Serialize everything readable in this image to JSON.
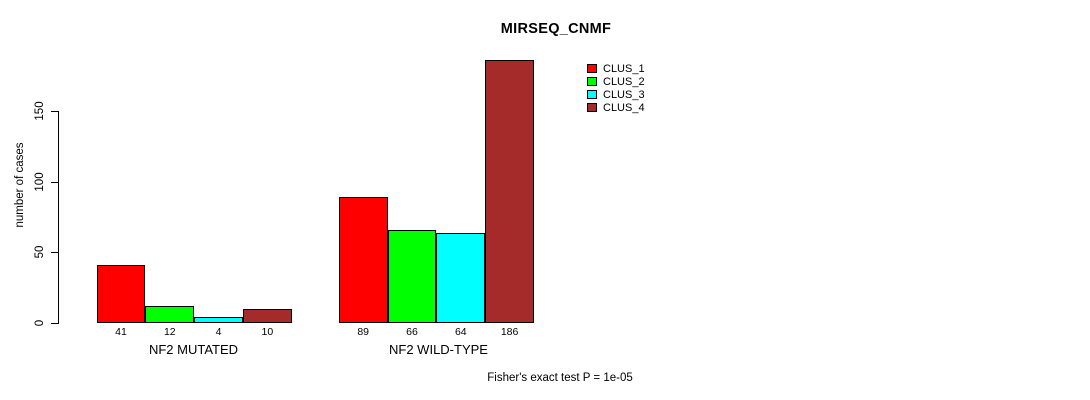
{
  "chart_data": {
    "type": "bar",
    "title": "MIRSEQ_CNMF",
    "xlabel": "",
    "ylabel": "number of cases",
    "categories": [
      "NF2 MUTATED",
      "NF2 WILD-TYPE"
    ],
    "series": [
      {
        "name": "CLUS_1",
        "color": "#FF0000",
        "values": [
          41,
          89
        ]
      },
      {
        "name": "CLUS_2",
        "color": "#00FF00",
        "values": [
          12,
          66
        ]
      },
      {
        "name": "CLUS_3",
        "color": "#00FFFF",
        "values": [
          4,
          64
        ]
      },
      {
        "name": "CLUS_4",
        "color": "#A52A2A",
        "values": [
          10,
          186
        ]
      }
    ],
    "yticks": [
      0,
      50,
      100,
      150
    ],
    "ylim": [
      0,
      190
    ],
    "grid": false,
    "bar_border_color": "#000000",
    "show_value_labels": true,
    "legend_position": "top-right",
    "annotation": "Fisher's exact test P = 1e-05"
  }
}
